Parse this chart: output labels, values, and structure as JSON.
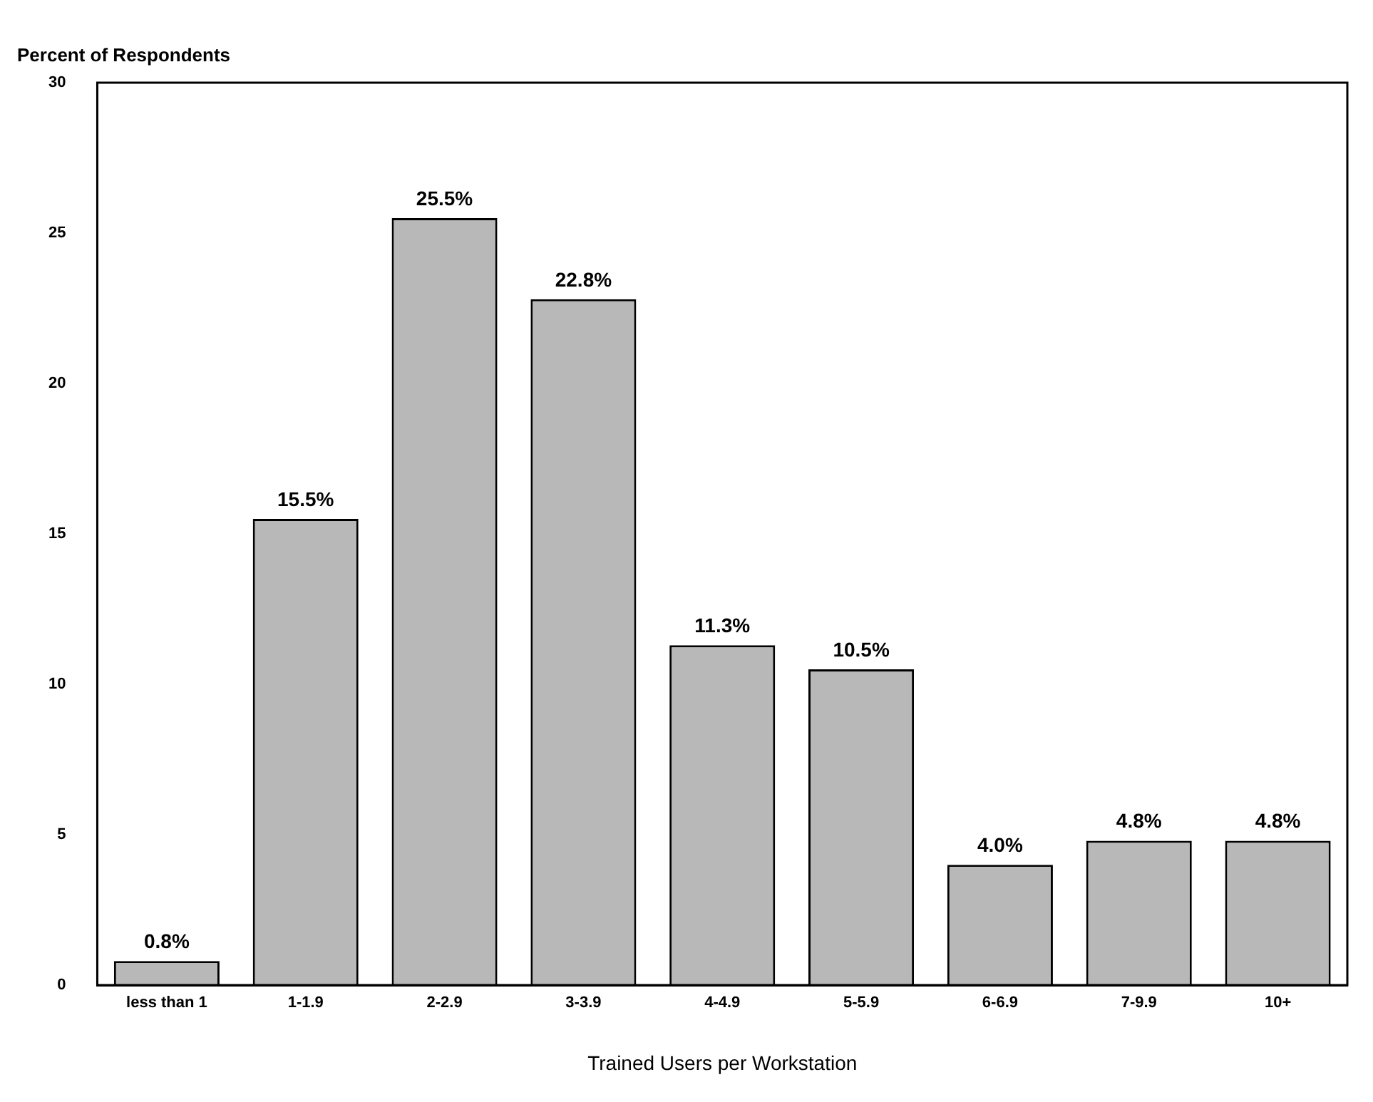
{
  "chart_data": {
    "type": "bar",
    "xlabel": "Trained Users per Workstation",
    "ylabel": "Percent of Respondents",
    "categories": [
      "less than 1",
      "1-1.9",
      "2-2.9",
      "3-3.9",
      "4-4.9",
      "5-5.9",
      "6-6.9",
      "7-9.9",
      "10+"
    ],
    "values": [
      0.8,
      15.5,
      25.5,
      22.8,
      11.3,
      10.5,
      4.0,
      4.8,
      4.8
    ],
    "value_labels": [
      "0.8%",
      "15.5%",
      "25.5%",
      "22.8%",
      "11.3%",
      "10.5%",
      "4.0%",
      "4.8%",
      "4.8%"
    ],
    "color": "#b8b8b8",
    "ylim": [
      0,
      30
    ],
    "yticks": [
      0,
      5,
      10,
      15,
      20,
      25,
      30
    ],
    "grid": false,
    "legend": false
  }
}
